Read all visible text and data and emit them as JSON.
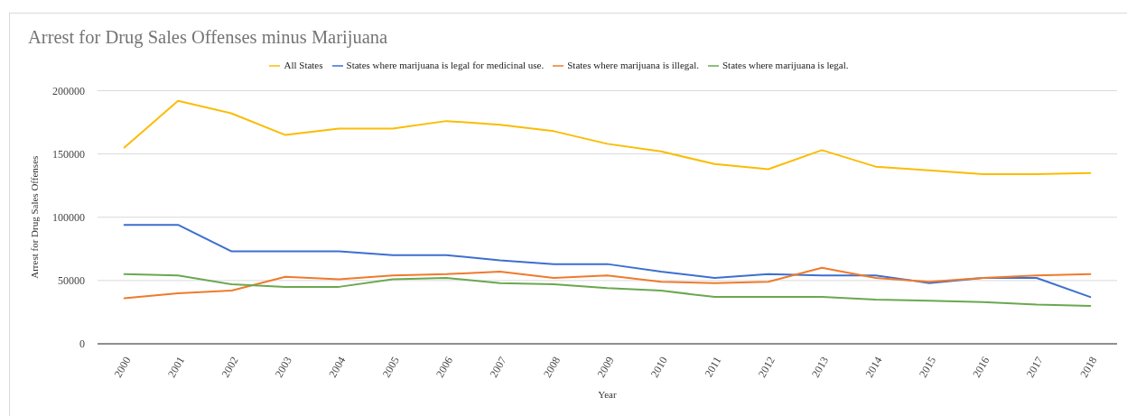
{
  "chart_data": {
    "type": "line",
    "title": "Arrest for Drug Sales Offenses minus Marijuana",
    "xlabel": "Year",
    "ylabel": "Arrest for Drug Sales Offenses",
    "categories": [
      "2000",
      "2001",
      "2002",
      "2003",
      "2004",
      "2005",
      "2006",
      "2007",
      "2008",
      "2009",
      "2010",
      "2011",
      "2012",
      "2013",
      "2014",
      "2015",
      "2016",
      "2017",
      "2018"
    ],
    "series": [
      {
        "name": "All States",
        "color": "#fbbc04",
        "values": [
          155000,
          192000,
          182000,
          165000,
          170000,
          170000,
          176000,
          173000,
          168000,
          158000,
          152000,
          142000,
          138000,
          153000,
          140000,
          137000,
          134000,
          134000,
          135000
        ]
      },
      {
        "name": "States where marijuana is legal for medicinal use.",
        "color": "#3d6fd0",
        "values": [
          94000,
          94000,
          73000,
          73000,
          73000,
          70000,
          70000,
          66000,
          63000,
          63000,
          57000,
          52000,
          55000,
          54000,
          54000,
          48000,
          52000,
          52000,
          37000
        ]
      },
      {
        "name": "States where marijuana is illegal.",
        "color": "#ef7a2c",
        "values": [
          36000,
          40000,
          42000,
          53000,
          51000,
          54000,
          55000,
          57000,
          52000,
          54000,
          49000,
          48000,
          49000,
          60000,
          52000,
          49000,
          52000,
          54000,
          55000
        ]
      },
      {
        "name": "States where marijuana is legal.",
        "color": "#6aa84f",
        "values": [
          55000,
          54000,
          47000,
          45000,
          45000,
          51000,
          52000,
          48000,
          47000,
          44000,
          42000,
          37000,
          37000,
          37000,
          35000,
          34000,
          33000,
          31000,
          30000
        ]
      }
    ],
    "ylim": [
      0,
      200000
    ],
    "yticks": [
      0,
      50000,
      100000,
      150000,
      200000
    ],
    "grid": "y",
    "legend": "top",
    "marker": "none",
    "line_style": "solid"
  }
}
